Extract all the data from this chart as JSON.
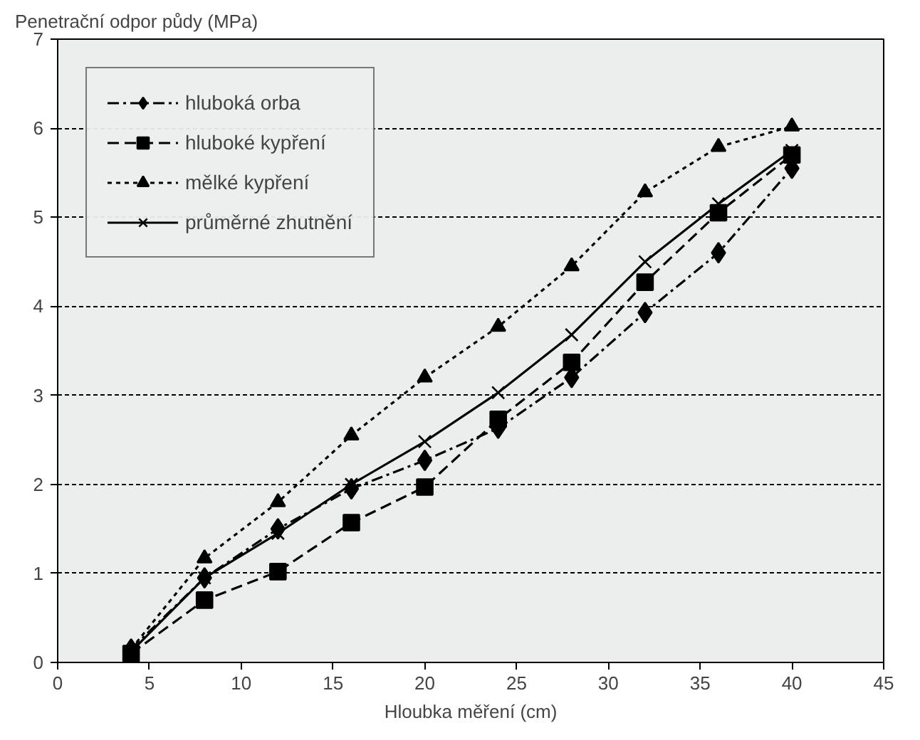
{
  "chart_data": {
    "type": "line",
    "ylabel": "Penetrační odpor půdy (MPa)",
    "xlabel": "Hloubka měření (cm)",
    "x": [
      4,
      8,
      12,
      16,
      20,
      24,
      28,
      32,
      36,
      40
    ],
    "xlim": [
      0,
      45
    ],
    "xticks": [
      0,
      5,
      10,
      15,
      20,
      25,
      30,
      35,
      40,
      45
    ],
    "ylim": [
      0,
      7
    ],
    "yticks": [
      0,
      1,
      2,
      3,
      4,
      5,
      6,
      7
    ],
    "grid": "y",
    "legend": "top left",
    "series": [
      {
        "name": "hluboká orba",
        "color": "#000000",
        "marker": "diamond",
        "line_style": "dashdot",
        "values": [
          0.15,
          0.95,
          1.5,
          1.95,
          2.27,
          2.63,
          3.2,
          3.93,
          4.6,
          5.55
        ]
      },
      {
        "name": "hluboké kypření",
        "color": "#000000",
        "marker": "square",
        "line_style": "dashed",
        "values": [
          0.1,
          0.7,
          1.02,
          1.57,
          1.97,
          2.73,
          3.37,
          4.27,
          5.05,
          5.7
        ]
      },
      {
        "name": "mělké kypření",
        "color": "#000000",
        "marker": "triangle",
        "line_style": "dotted",
        "values": [
          0.15,
          1.17,
          1.8,
          2.55,
          3.2,
          3.77,
          4.45,
          5.28,
          5.79,
          6.02
        ]
      },
      {
        "name": "průměrné zhutnění",
        "color": "#000000",
        "marker": "cross",
        "line_style": "solid",
        "values": [
          0.12,
          0.95,
          1.45,
          2.0,
          2.48,
          3.03,
          3.68,
          4.5,
          5.15,
          5.75
        ]
      }
    ]
  }
}
